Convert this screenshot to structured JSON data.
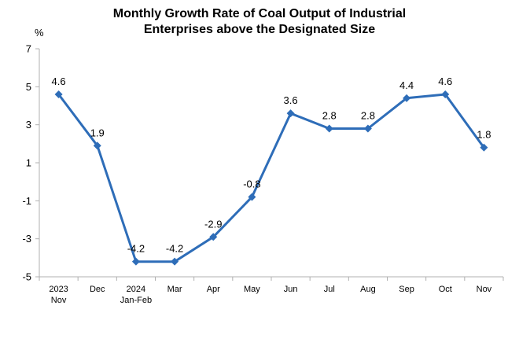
{
  "chart_data": {
    "type": "line",
    "title_lines": [
      "Monthly Growth Rate of Coal Output of Industrial",
      "Enterprises above the Designated Size"
    ],
    "ylabel": "%",
    "ylim": [
      -5,
      7
    ],
    "yticks": [
      "7",
      "5",
      "3",
      "1",
      "-1",
      "-3",
      "-5"
    ],
    "categories": [
      [
        "2023",
        "Nov"
      ],
      [
        "Dec"
      ],
      [
        "2024",
        "Jan-Feb"
      ],
      [
        "Mar"
      ],
      [
        "Apr"
      ],
      [
        "May"
      ],
      [
        "Jun"
      ],
      [
        "Jul"
      ],
      [
        "Aug"
      ],
      [
        "Sep"
      ],
      [
        "Oct"
      ],
      [
        "Nov"
      ]
    ],
    "values": [
      4.6,
      1.9,
      -4.2,
      -4.2,
      -2.9,
      -0.8,
      3.6,
      2.8,
      2.8,
      4.4,
      4.6,
      1.8
    ],
    "data_labels": [
      "4.6",
      "1.9",
      "-4.2",
      "-4.2",
      "-2.9",
      "-0.8",
      "3.6",
      "2.8",
      "2.8",
      "4.4",
      "4.6",
      "1.8"
    ],
    "line_color": "#2E6DB8",
    "grid": false,
    "legend": "none"
  }
}
